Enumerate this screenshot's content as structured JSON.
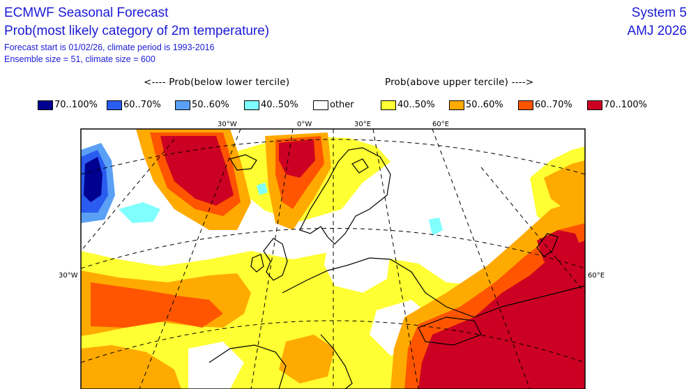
{
  "header": {
    "title": "ECMWF Seasonal Forecast",
    "subtitle": "Prob(most likely category of 2m temperature)",
    "forecast_info": "Forecast start is 01/02/26, climate period is 1993-2016",
    "ensemble_info": "Ensemble size = 51, climate size = 600",
    "system": "System 5",
    "season": "AMJ 2026"
  },
  "legend": {
    "below_heading": "<---- Prob(below lower tercile)",
    "above_heading": "Prob(above upper tercile) ---->",
    "items": [
      {
        "label": "70..100%",
        "color": "#000090"
      },
      {
        "label": "60..70%",
        "color": "#2a5cf0"
      },
      {
        "label": "50..60%",
        "color": "#5aa0f5"
      },
      {
        "label": "40..50%",
        "color": "#80ffff"
      },
      {
        "label": "other",
        "color": "#ffffff"
      },
      {
        "label": "40..50%",
        "color": "#ffff33"
      },
      {
        "label": "50..60%",
        "color": "#ffaa00"
      },
      {
        "label": "60..70%",
        "color": "#ff5500"
      },
      {
        "label": "70..100%",
        "color": "#cc0022"
      }
    ]
  },
  "map": {
    "lon_labels_top": [
      "30°W",
      "0°W",
      "30°E",
      "60°E"
    ],
    "lat_label_left": "30°W",
    "lat_label_right": "60°E",
    "colors": {
      "frame": "#000000",
      "graticule": "#000000",
      "coast": "#000000"
    }
  }
}
